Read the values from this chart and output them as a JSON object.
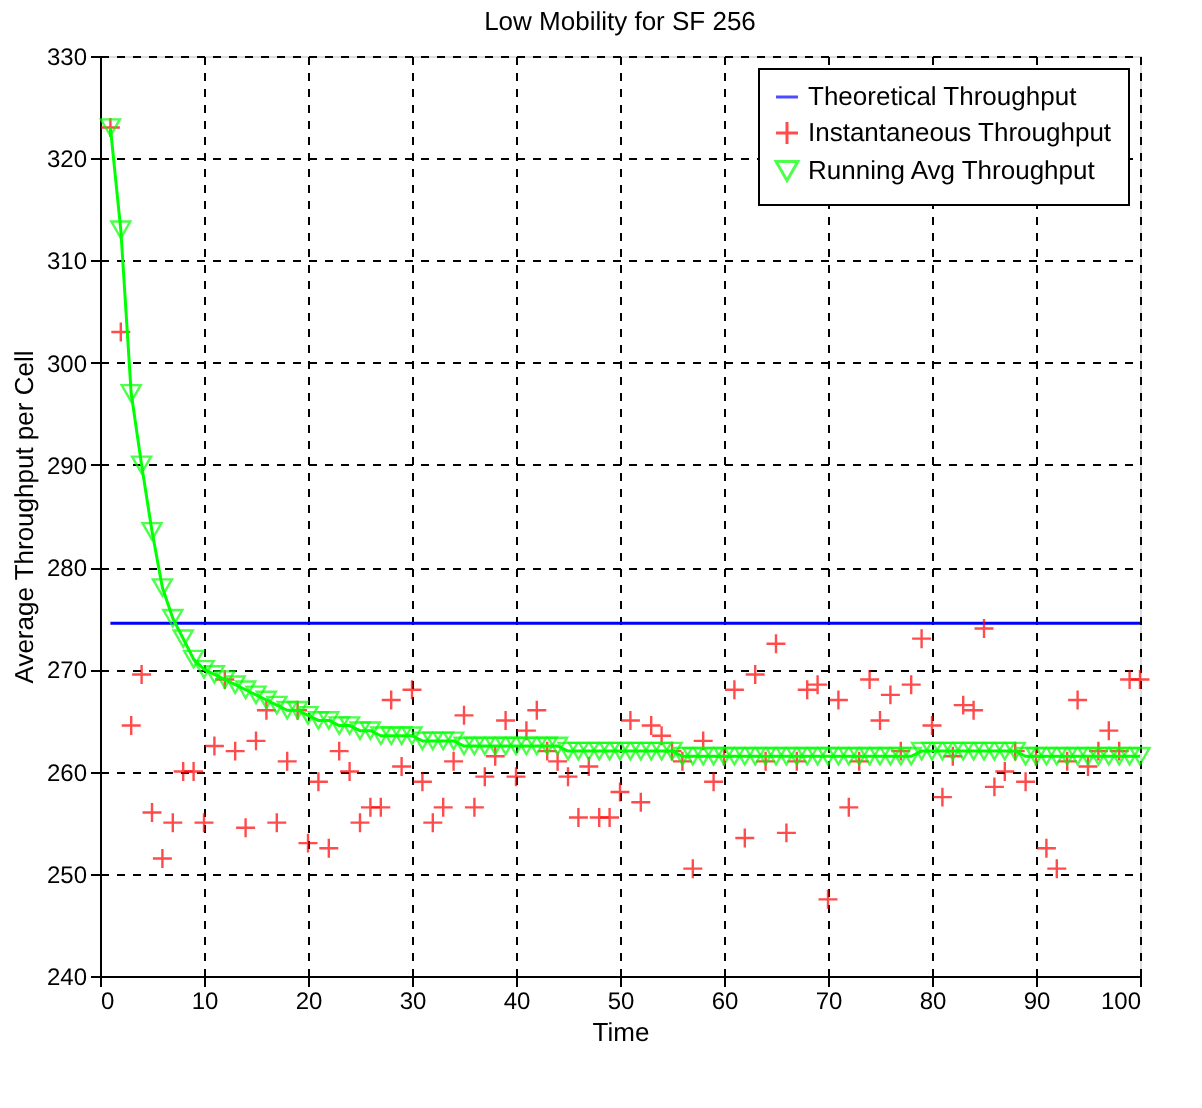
{
  "chart_data": {
    "type": "line",
    "title": "Low Mobility for SF 256",
    "xlabel": "Time",
    "ylabel": "Average Throughput per Cell",
    "xlim": [
      0,
      100
    ],
    "xticks": [
      0,
      10,
      20,
      30,
      40,
      50,
      60,
      70,
      80,
      90,
      100
    ],
    "ylim": [
      240,
      330
    ],
    "yticks": [
      240,
      250,
      260,
      270,
      280,
      290,
      300,
      310,
      320,
      330
    ],
    "grid": true,
    "legend": "top right",
    "series": [
      {
        "name": "Theoretical Throughput",
        "color": "#0000ff",
        "marker": "none",
        "line_style": "solid",
        "x": [
          1,
          100
        ],
        "values": [
          274.5,
          274.5
        ]
      },
      {
        "name": "Instantaneous Throughput",
        "type": "scatter",
        "color": "#ff0000",
        "marker": "cross",
        "x": [
          1,
          2,
          3,
          4,
          5,
          6,
          7,
          8,
          9,
          10,
          11,
          12,
          13,
          14,
          15,
          16,
          17,
          18,
          19,
          20,
          21,
          22,
          23,
          24,
          25,
          26,
          27,
          28,
          29,
          30,
          31,
          32,
          33,
          34,
          35,
          36,
          37,
          38,
          39,
          40,
          41,
          42,
          43,
          44,
          45,
          46,
          47,
          48,
          49,
          50,
          51,
          52,
          53,
          54,
          55,
          56,
          57,
          58,
          59,
          60,
          61,
          62,
          63,
          64,
          65,
          66,
          67,
          68,
          69,
          70,
          71,
          72,
          73,
          74,
          75,
          76,
          77,
          78,
          79,
          80,
          81,
          82,
          83,
          84,
          85,
          86,
          87,
          88,
          89,
          90,
          91,
          92,
          93,
          94,
          95,
          96,
          97,
          98,
          99,
          100
        ],
        "values": [
          323,
          303,
          264.5,
          269.5,
          256,
          251.5,
          255,
          260,
          260,
          255,
          262.5,
          269,
          262,
          254.5,
          263,
          266,
          255,
          261,
          266,
          253,
          259,
          252.5,
          262,
          260,
          255,
          256.5,
          256.5,
          267,
          260.5,
          268,
          259,
          255,
          256.5,
          261,
          265.5,
          256.5,
          259.5,
          261.5,
          265,
          259.5,
          264,
          266,
          262,
          261,
          259.5,
          255.5,
          260.5,
          255.5,
          255.5,
          258,
          265,
          257,
          264.5,
          263.5,
          262,
          261,
          250.5,
          263,
          259,
          261.5,
          268,
          253.5,
          269.5,
          261,
          272.5,
          254,
          261,
          268,
          268.5,
          247.5,
          267,
          256.5,
          261,
          269,
          265,
          267.5,
          262,
          268.5,
          273,
          264.5,
          257.5,
          261.5,
          266.5,
          266,
          274,
          258.5,
          260,
          262,
          259,
          261.5,
          252.5,
          250.5,
          261,
          267,
          260.5,
          262,
          264,
          262,
          269,
          269
        ]
      },
      {
        "name": "Running Avg Throughput",
        "color": "#00ff00",
        "marker": "triangle",
        "line_style": "solid",
        "x": [
          1,
          2,
          3,
          4,
          5,
          6,
          7,
          8,
          9,
          10,
          11,
          12,
          13,
          14,
          15,
          16,
          17,
          18,
          19,
          20,
          21,
          22,
          23,
          24,
          25,
          26,
          27,
          28,
          29,
          30,
          31,
          32,
          33,
          34,
          35,
          36,
          37,
          38,
          39,
          40,
          41,
          42,
          43,
          44,
          45,
          46,
          47,
          48,
          49,
          50,
          51,
          52,
          53,
          54,
          55,
          56,
          57,
          58,
          59,
          60,
          61,
          62,
          63,
          64,
          65,
          66,
          67,
          68,
          69,
          70,
          71,
          72,
          73,
          74,
          75,
          76,
          77,
          78,
          79,
          80,
          81,
          82,
          83,
          84,
          85,
          86,
          87,
          88,
          89,
          90,
          91,
          92,
          93,
          94,
          95,
          96,
          97,
          98,
          99,
          100
        ],
        "values": [
          323,
          313,
          297,
          290,
          283.5,
          278,
          275,
          273,
          271,
          270,
          269.5,
          269,
          268.5,
          268,
          267.5,
          267,
          266.5,
          266,
          266,
          265.5,
          265,
          265,
          264.5,
          264.5,
          264,
          264,
          263.5,
          263.5,
          263.5,
          263.5,
          263,
          263,
          263,
          263,
          262.5,
          262.5,
          262.5,
          262.5,
          262.5,
          262.5,
          262.5,
          262.5,
          262.5,
          262.5,
          262,
          262,
          262,
          262,
          262,
          262,
          262,
          262,
          262,
          262,
          262,
          261.5,
          261.5,
          261.5,
          261.5,
          261.5,
          261.5,
          261.5,
          261.5,
          261.5,
          261.5,
          261.5,
          261.5,
          261.5,
          261.5,
          261.5,
          261.5,
          261.5,
          261.5,
          261.5,
          261.5,
          261.5,
          261.5,
          261.5,
          262,
          262,
          262,
          262,
          262,
          262,
          262,
          262,
          262,
          262,
          261.5,
          261.5,
          261.5,
          261.5,
          261.5,
          261.5,
          261.5,
          261.5,
          261.5,
          261.5,
          261.5,
          261.5
        ]
      }
    ]
  }
}
